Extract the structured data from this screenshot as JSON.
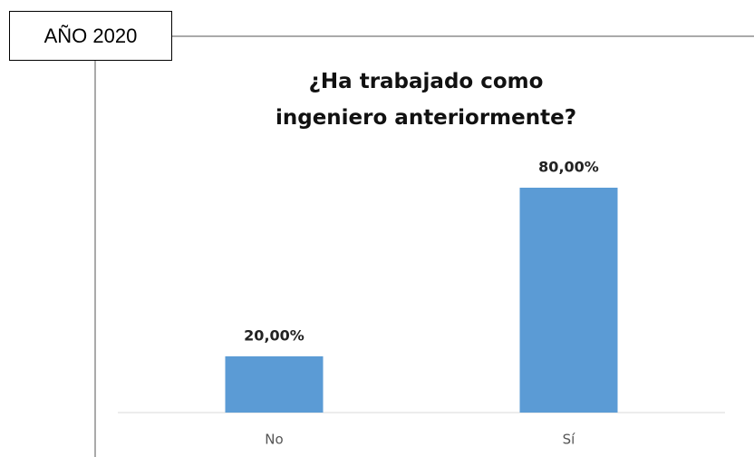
{
  "label": "AÑO 2020",
  "chart_data": {
    "type": "bar",
    "title": "¿Ha trabajado como ingeniero anteriormente?",
    "categories": [
      "No",
      "Sí"
    ],
    "values": [
      20,
      80
    ],
    "value_labels": [
      "20,00%",
      "80,00%"
    ],
    "color": "#5b9bd5"
  }
}
